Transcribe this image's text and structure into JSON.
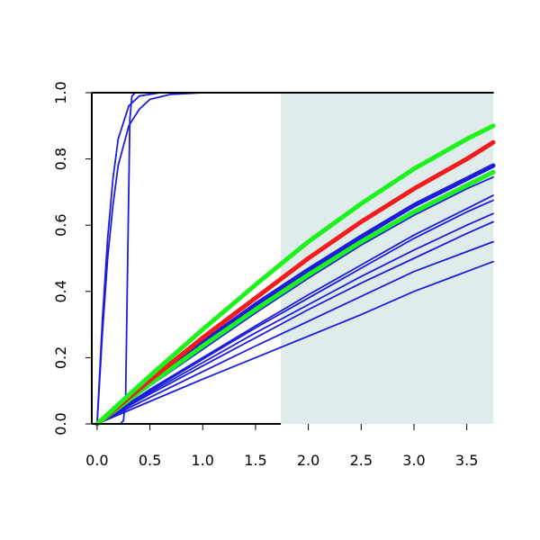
{
  "chart_data": {
    "type": "line",
    "title": "",
    "xlabel": "",
    "ylabel": "",
    "xlim": [
      -0.05,
      3.75
    ],
    "ylim": [
      0,
      1.0
    ],
    "x_ticks": [
      "0.0",
      "0.5",
      "1.0",
      "1.5",
      "2.0",
      "2.5",
      "3.0",
      "3.5"
    ],
    "y_ticks": [
      "0.0",
      "0.2",
      "0.4",
      "0.6",
      "0.8",
      "1.0"
    ],
    "shaded_region": {
      "x_from": 1.74,
      "x_to": 3.75,
      "color": "#e0eceb"
    },
    "colors": {
      "blue": "#1c1cdc",
      "red": "#f21c1c",
      "green": "#1cf21c",
      "axes": "#000000"
    },
    "series": [
      {
        "color": "#1c1cdc",
        "width": "thin",
        "points": [
          [
            0,
            0
          ],
          [
            0.05,
            0.27
          ],
          [
            0.1,
            0.5
          ],
          [
            0.15,
            0.66
          ],
          [
            0.2,
            0.78
          ],
          [
            0.3,
            0.9
          ],
          [
            0.4,
            0.95
          ],
          [
            0.5,
            0.98
          ],
          [
            0.7,
            0.995
          ],
          [
            1.0,
            1.0
          ],
          [
            3.75,
            1.0
          ]
        ]
      },
      {
        "color": "#1c1cdc",
        "width": "thin",
        "points": [
          [
            0,
            0
          ],
          [
            0.05,
            0.31
          ],
          [
            0.1,
            0.56
          ],
          [
            0.15,
            0.74
          ],
          [
            0.2,
            0.86
          ],
          [
            0.3,
            0.96
          ],
          [
            0.4,
            0.99
          ],
          [
            0.6,
            1.0
          ],
          [
            3.75,
            1.0
          ]
        ]
      },
      {
        "color": "#1c1cdc",
        "width": "thin",
        "points": [
          [
            0.22,
            0.0
          ],
          [
            0.25,
            0.01
          ],
          [
            0.27,
            0.08
          ],
          [
            0.29,
            0.5
          ],
          [
            0.31,
            0.92
          ],
          [
            0.33,
            0.99
          ],
          [
            0.36,
            1.0
          ],
          [
            3.75,
            1.0
          ]
        ]
      },
      {
        "color": "#1c1cdc",
        "width": "thin",
        "points": [
          [
            0,
            0
          ],
          [
            0.5,
            0.068
          ],
          [
            1.0,
            0.135
          ],
          [
            1.5,
            0.2
          ],
          [
            2.0,
            0.265
          ],
          [
            2.5,
            0.33
          ],
          [
            3.0,
            0.4
          ],
          [
            3.5,
            0.46
          ],
          [
            3.75,
            0.49
          ]
        ]
      },
      {
        "color": "#1c1cdc",
        "width": "thin",
        "points": [
          [
            0,
            0
          ],
          [
            0.5,
            0.08
          ],
          [
            1.0,
            0.158
          ],
          [
            1.5,
            0.235
          ],
          [
            2.0,
            0.31
          ],
          [
            2.5,
            0.385
          ],
          [
            3.0,
            0.46
          ],
          [
            3.5,
            0.52
          ],
          [
            3.75,
            0.55
          ]
        ]
      },
      {
        "color": "#1c1cdc",
        "width": "thin",
        "points": [
          [
            0,
            0
          ],
          [
            0.5,
            0.09
          ],
          [
            1.0,
            0.175
          ],
          [
            1.5,
            0.26
          ],
          [
            2.0,
            0.345
          ],
          [
            2.5,
            0.425
          ],
          [
            3.0,
            0.5
          ],
          [
            3.5,
            0.575
          ],
          [
            3.75,
            0.61
          ]
        ]
      },
      {
        "color": "#1c1cdc",
        "width": "thin",
        "points": [
          [
            0,
            0
          ],
          [
            0.5,
            0.095
          ],
          [
            1.0,
            0.185
          ],
          [
            1.5,
            0.275
          ],
          [
            2.0,
            0.36
          ],
          [
            2.5,
            0.445
          ],
          [
            3.0,
            0.525
          ],
          [
            3.5,
            0.6
          ],
          [
            3.75,
            0.635
          ]
        ]
      },
      {
        "color": "#1c1cdc",
        "width": "thin",
        "points": [
          [
            0,
            0
          ],
          [
            0.5,
            0.1
          ],
          [
            1.0,
            0.195
          ],
          [
            1.5,
            0.29
          ],
          [
            2.0,
            0.38
          ],
          [
            2.5,
            0.47
          ],
          [
            3.0,
            0.56
          ],
          [
            3.5,
            0.64
          ],
          [
            3.75,
            0.675
          ]
        ]
      },
      {
        "color": "#1c1cdc",
        "width": "thin",
        "points": [
          [
            0,
            0
          ],
          [
            0.5,
            0.104
          ],
          [
            1.0,
            0.2
          ],
          [
            1.5,
            0.296
          ],
          [
            2.0,
            0.39
          ],
          [
            2.5,
            0.48
          ],
          [
            3.0,
            0.57
          ],
          [
            3.5,
            0.65
          ],
          [
            3.75,
            0.69
          ]
        ]
      },
      {
        "color": "#1c1cdc",
        "width": "thin",
        "points": [
          [
            0,
            0
          ],
          [
            0.5,
            0.115
          ],
          [
            1.0,
            0.225
          ],
          [
            1.5,
            0.335
          ],
          [
            2.0,
            0.44
          ],
          [
            2.5,
            0.54
          ],
          [
            3.0,
            0.63
          ],
          [
            3.5,
            0.71
          ],
          [
            3.75,
            0.745
          ]
        ]
      },
      {
        "color": "#1c1cdc",
        "width": "thick",
        "points": [
          [
            0,
            0
          ],
          [
            0.5,
            0.125
          ],
          [
            1.0,
            0.245
          ],
          [
            1.5,
            0.36
          ],
          [
            2.0,
            0.465
          ],
          [
            2.5,
            0.565
          ],
          [
            3.0,
            0.66
          ],
          [
            3.5,
            0.74
          ],
          [
            3.75,
            0.78
          ]
        ]
      },
      {
        "color": "#1cf21c",
        "width": "thick",
        "points": [
          [
            0,
            0
          ],
          [
            0.5,
            0.12
          ],
          [
            1.0,
            0.235
          ],
          [
            1.5,
            0.345
          ],
          [
            2.0,
            0.45
          ],
          [
            2.5,
            0.55
          ],
          [
            3.0,
            0.64
          ],
          [
            3.5,
            0.72
          ],
          [
            3.75,
            0.76
          ]
        ]
      },
      {
        "color": "#f21c1c",
        "width": "thick",
        "points": [
          [
            0,
            0
          ],
          [
            0.5,
            0.132
          ],
          [
            1.0,
            0.26
          ],
          [
            1.5,
            0.38
          ],
          [
            2.0,
            0.5
          ],
          [
            2.5,
            0.61
          ],
          [
            3.0,
            0.71
          ],
          [
            3.5,
            0.8
          ],
          [
            3.75,
            0.85
          ]
        ]
      },
      {
        "color": "#1cf21c",
        "width": "thick",
        "points": [
          [
            0,
            0
          ],
          [
            0.5,
            0.145
          ],
          [
            1.0,
            0.285
          ],
          [
            1.5,
            0.42
          ],
          [
            2.0,
            0.55
          ],
          [
            2.5,
            0.665
          ],
          [
            3.0,
            0.77
          ],
          [
            3.5,
            0.86
          ],
          [
            3.75,
            0.9
          ]
        ]
      }
    ]
  }
}
